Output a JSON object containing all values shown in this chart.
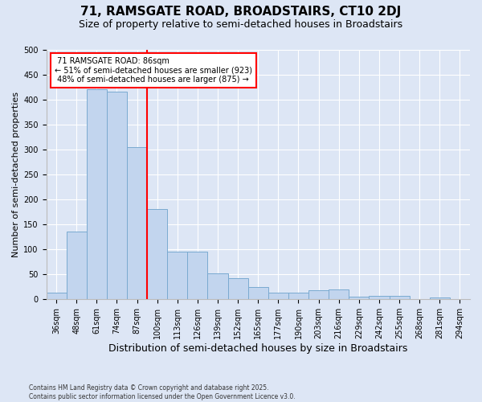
{
  "title": "71, RAMSGATE ROAD, BROADSTAIRS, CT10 2DJ",
  "subtitle": "Size of property relative to semi-detached houses in Broadstairs",
  "xlabel": "Distribution of semi-detached houses by size in Broadstairs",
  "ylabel": "Number of semi-detached properties",
  "categories": [
    "36sqm",
    "48sqm",
    "61sqm",
    "74sqm",
    "87sqm",
    "100sqm",
    "113sqm",
    "126sqm",
    "139sqm",
    "152sqm",
    "165sqm",
    "177sqm",
    "190sqm",
    "203sqm",
    "216sqm",
    "229sqm",
    "242sqm",
    "255sqm",
    "268sqm",
    "281sqm",
    "294sqm"
  ],
  "values": [
    14,
    135,
    420,
    415,
    305,
    180,
    95,
    95,
    52,
    42,
    25,
    14,
    14,
    18,
    19,
    5,
    6,
    7,
    0,
    4,
    0
  ],
  "bar_color": "#c2d5ee",
  "bar_edge_color": "#7aaad0",
  "vline_index": 4,
  "vline_color": "red",
  "property_label": "71 RAMSGATE ROAD: 86sqm",
  "pct_smaller": 51,
  "n_smaller": 923,
  "pct_larger": 48,
  "n_larger": 875,
  "ylim": [
    0,
    500
  ],
  "yticks": [
    0,
    50,
    100,
    150,
    200,
    250,
    300,
    350,
    400,
    450,
    500
  ],
  "bg_color": "#dde6f5",
  "grid_color": "#ffffff",
  "ann_facecolor": "#ffffff",
  "ann_edgecolor": "red",
  "footer": "Contains HM Land Registry data © Crown copyright and database right 2025.\nContains public sector information licensed under the Open Government Licence v3.0.",
  "title_fontsize": 11,
  "subtitle_fontsize": 9,
  "ylabel_fontsize": 8,
  "xlabel_fontsize": 9,
  "tick_fontsize": 7,
  "ann_fontsize": 7,
  "footer_fontsize": 5.5
}
